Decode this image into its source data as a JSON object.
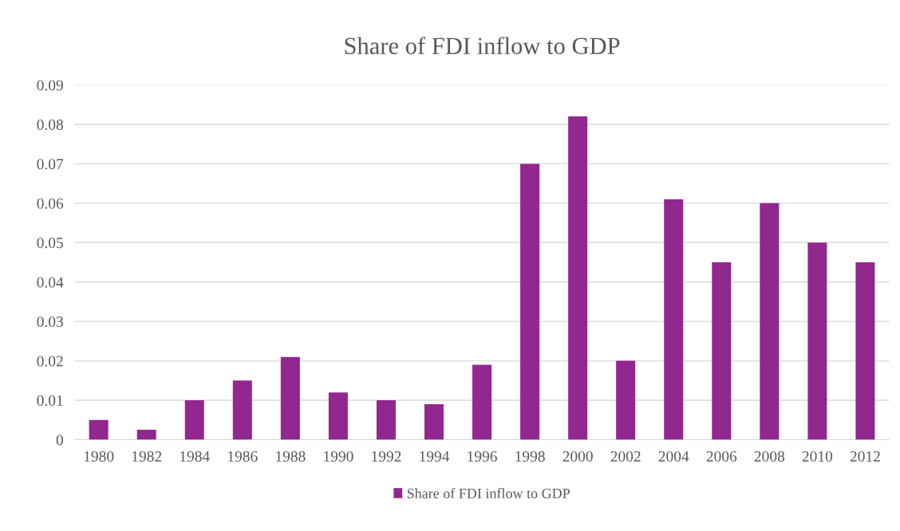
{
  "chart_data": {
    "type": "bar",
    "title": "Share of FDI inflow to GDP",
    "categories": [
      "1980",
      "1982",
      "1984",
      "1986",
      "1988",
      "1990",
      "1992",
      "1994",
      "1996",
      "1998",
      "2000",
      "2002",
      "2004",
      "2006",
      "2008",
      "2010",
      "2012"
    ],
    "series": [
      {
        "name": "Share of FDI inflow to GDP",
        "color": "#92278f",
        "values": [
          0.005,
          0.0025,
          0.01,
          0.015,
          0.021,
          0.012,
          0.01,
          0.009,
          0.019,
          0.07,
          0.082,
          0.02,
          0.061,
          0.045,
          0.06,
          0.05,
          0.045
        ]
      }
    ],
    "ylim": [
      0,
      0.09
    ],
    "yticks": [
      0,
      0.01,
      0.02,
      0.03,
      0.04,
      0.05,
      0.06,
      0.07,
      0.08,
      0.09
    ],
    "grid": "y",
    "legend": "bottom"
  }
}
